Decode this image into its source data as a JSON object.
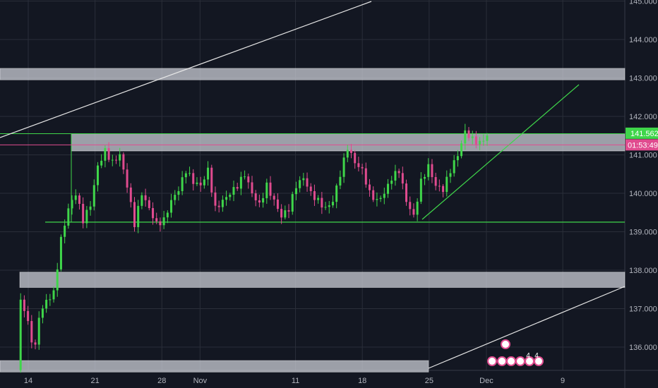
{
  "chart_data": {
    "type": "candlestick",
    "title": "",
    "xlabel": "",
    "ylabel": "",
    "ylim": [
      135.5,
      145.0
    ],
    "y_ticks": [
      "136.000",
      "137.000",
      "138.000",
      "139.000",
      "140.000",
      "141.000",
      "142.000",
      "143.000",
      "144.000",
      "145.000"
    ],
    "x_ticks": [
      {
        "label": "14",
        "date": "2024-10-14"
      },
      {
        "label": "21",
        "date": "2024-10-21"
      },
      {
        "label": "28",
        "date": "2024-10-28"
      },
      {
        "label": "Nov",
        "date": "2024-11-01"
      },
      {
        "label": "11",
        "date": "2024-11-11"
      },
      {
        "label": "18",
        "date": "2024-11-18"
      },
      {
        "label": "25",
        "date": "2024-11-25"
      },
      {
        "label": "Dec",
        "date": "2024-12-01"
      },
      {
        "label": "9",
        "date": "2024-12-09"
      }
    ],
    "grid": true,
    "price_label": "141.562",
    "price_value": 141.562,
    "countdown_label": "01:53:49",
    "countdown_value": 141.26,
    "zones": [
      {
        "low": 142.95,
        "high": 143.25,
        "color": "#d1d4dc"
      },
      {
        "low": 141.1,
        "high": 141.55,
        "color": "#d1d4dc"
      },
      {
        "low": 137.55,
        "high": 137.95,
        "color": "#d1d4dc"
      },
      {
        "low": 135.35,
        "high": 135.65,
        "color": "#d1d4dc"
      }
    ],
    "lines": [
      {
        "name": "support-line",
        "color": "#3fd64a",
        "y": 139.25
      },
      {
        "name": "resistance-line",
        "color": "#3fd64a",
        "y": 141.55
      }
    ],
    "trendlines": [
      {
        "name": "upper-white-trendline",
        "color": "#e6e6e6"
      },
      {
        "name": "lower-white-trendline",
        "color": "#e6e6e6"
      },
      {
        "name": "green-trendline",
        "color": "#3fd64a"
      }
    ],
    "candle_colors": {
      "up": "#3fd64a",
      "down": "#e04b8f",
      "wick_up": "#3fd64a",
      "wick_down": "#e04b8f"
    },
    "event_markers": [
      "4",
      "4"
    ]
  },
  "colors": {
    "background": "#131722",
    "grid": "#2a2e39",
    "axis_text": "#b2b5be",
    "price_tag_bg": "#3fd64a",
    "countdown_tag_bg": "#e04b8f"
  }
}
